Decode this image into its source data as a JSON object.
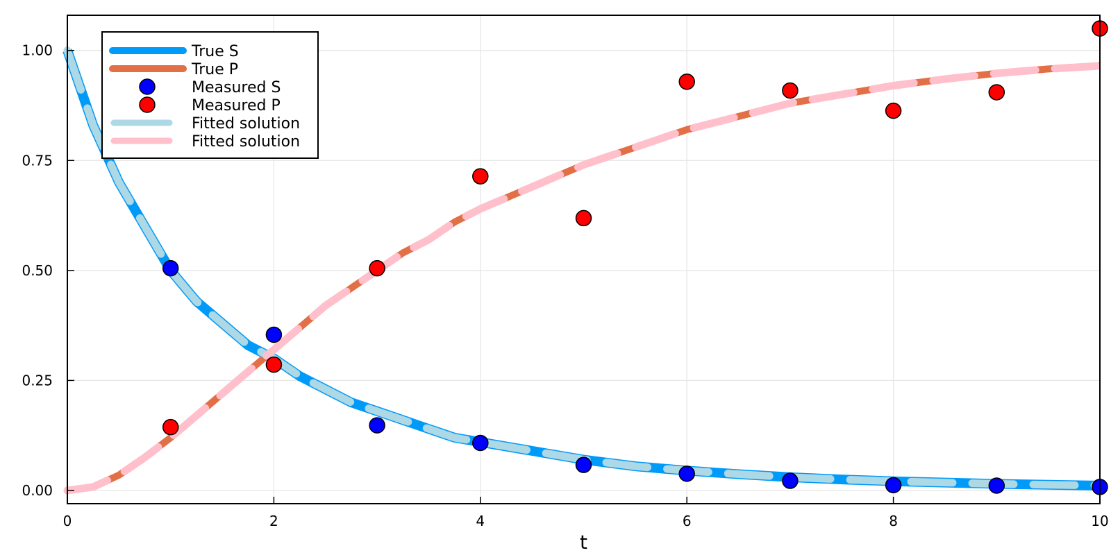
{
  "chart_data": {
    "type": "line",
    "title": "",
    "xlabel": "t",
    "ylabel": "",
    "xlim": [
      0,
      10
    ],
    "ylim": [
      -0.03,
      1.08
    ],
    "xticks": [
      0,
      2,
      4,
      6,
      8,
      10
    ],
    "xtick_labels": [
      "0",
      "2",
      "4",
      "6",
      "8",
      "10"
    ],
    "yticks": [
      0,
      0.25,
      0.5,
      0.75,
      1.0
    ],
    "ytick_labels": [
      "0.00",
      "0.25",
      "0.50",
      "0.75",
      "1.00"
    ],
    "grid": true,
    "legend_position": "top-left",
    "colors": {
      "true_s": "#009af9",
      "true_p": "#e26f46",
      "measured_s": "#0000ff",
      "measured_p": "#ff0000",
      "fitted_s": "#add8e6",
      "fitted_p": "#ffc0cb",
      "grid": "#e5e5e5",
      "frame": "#000000"
    },
    "series": [
      {
        "name": "True S",
        "kind": "line",
        "x": [
          0,
          0.25,
          0.5,
          0.75,
          1,
          1.25,
          1.5,
          1.75,
          2,
          2.25,
          2.5,
          2.75,
          3,
          3.25,
          3.5,
          3.75,
          4,
          4.5,
          5,
          5.5,
          6,
          6.5,
          7,
          7.5,
          8,
          8.5,
          9,
          9.5,
          10
        ],
        "y": [
          1,
          0.83,
          0.7,
          0.6,
          0.5,
          0.43,
          0.38,
          0.33,
          0.3,
          0.26,
          0.23,
          0.2,
          0.18,
          0.16,
          0.14,
          0.12,
          0.11,
          0.09,
          0.07,
          0.055,
          0.045,
          0.037,
          0.03,
          0.025,
          0.021,
          0.018,
          0.015,
          0.013,
          0.011
        ]
      },
      {
        "name": "True P",
        "kind": "line",
        "x": [
          0,
          0.25,
          0.5,
          0.75,
          1,
          1.25,
          1.5,
          1.75,
          2,
          2.25,
          2.5,
          2.75,
          3,
          3.25,
          3.5,
          3.75,
          4,
          4.5,
          5,
          5.5,
          6,
          6.5,
          7,
          7.5,
          8,
          8.5,
          9,
          9.5,
          10
        ],
        "y": [
          0,
          0.008,
          0.035,
          0.075,
          0.12,
          0.17,
          0.22,
          0.27,
          0.32,
          0.37,
          0.42,
          0.46,
          0.5,
          0.54,
          0.57,
          0.61,
          0.64,
          0.69,
          0.74,
          0.78,
          0.82,
          0.85,
          0.88,
          0.9,
          0.92,
          0.935,
          0.948,
          0.958,
          0.965
        ]
      },
      {
        "name": "Measured S",
        "kind": "scatter",
        "x": [
          1,
          2,
          3,
          4,
          5,
          6,
          7,
          8,
          9,
          10
        ],
        "y": [
          0.505,
          0.354,
          0.148,
          0.108,
          0.058,
          0.038,
          0.022,
          0.012,
          0.011,
          0.008
        ]
      },
      {
        "name": "Measured P",
        "kind": "scatter",
        "x": [
          1,
          2,
          3,
          4,
          5,
          6,
          7,
          8,
          9,
          10
        ],
        "y": [
          0.144,
          0.286,
          0.505,
          0.714,
          0.619,
          0.929,
          0.909,
          0.863,
          0.905,
          1.05
        ]
      },
      {
        "name": "Fitted solution",
        "kind": "dashed",
        "x": [
          0,
          0.25,
          0.5,
          0.75,
          1,
          1.25,
          1.5,
          1.75,
          2,
          2.25,
          2.5,
          2.75,
          3,
          3.25,
          3.5,
          3.75,
          4,
          4.5,
          5,
          5.5,
          6,
          6.5,
          7,
          7.5,
          8,
          8.5,
          9,
          9.5,
          10
        ],
        "y": [
          1,
          0.83,
          0.7,
          0.6,
          0.5,
          0.43,
          0.38,
          0.33,
          0.3,
          0.26,
          0.23,
          0.2,
          0.18,
          0.16,
          0.14,
          0.12,
          0.11,
          0.09,
          0.07,
          0.055,
          0.045,
          0.037,
          0.03,
          0.025,
          0.021,
          0.018,
          0.015,
          0.013,
          0.011
        ]
      },
      {
        "name": "Fitted solution",
        "kind": "dashed",
        "x": [
          0,
          0.25,
          0.5,
          0.75,
          1,
          1.25,
          1.5,
          1.75,
          2,
          2.25,
          2.5,
          2.75,
          3,
          3.25,
          3.5,
          3.75,
          4,
          4.5,
          5,
          5.5,
          6,
          6.5,
          7,
          7.5,
          8,
          8.5,
          9,
          9.5,
          10
        ],
        "y": [
          0,
          0.008,
          0.035,
          0.075,
          0.12,
          0.17,
          0.22,
          0.27,
          0.32,
          0.37,
          0.42,
          0.46,
          0.5,
          0.54,
          0.57,
          0.61,
          0.64,
          0.69,
          0.74,
          0.78,
          0.82,
          0.85,
          0.88,
          0.9,
          0.92,
          0.935,
          0.948,
          0.958,
          0.965
        ]
      }
    ]
  }
}
